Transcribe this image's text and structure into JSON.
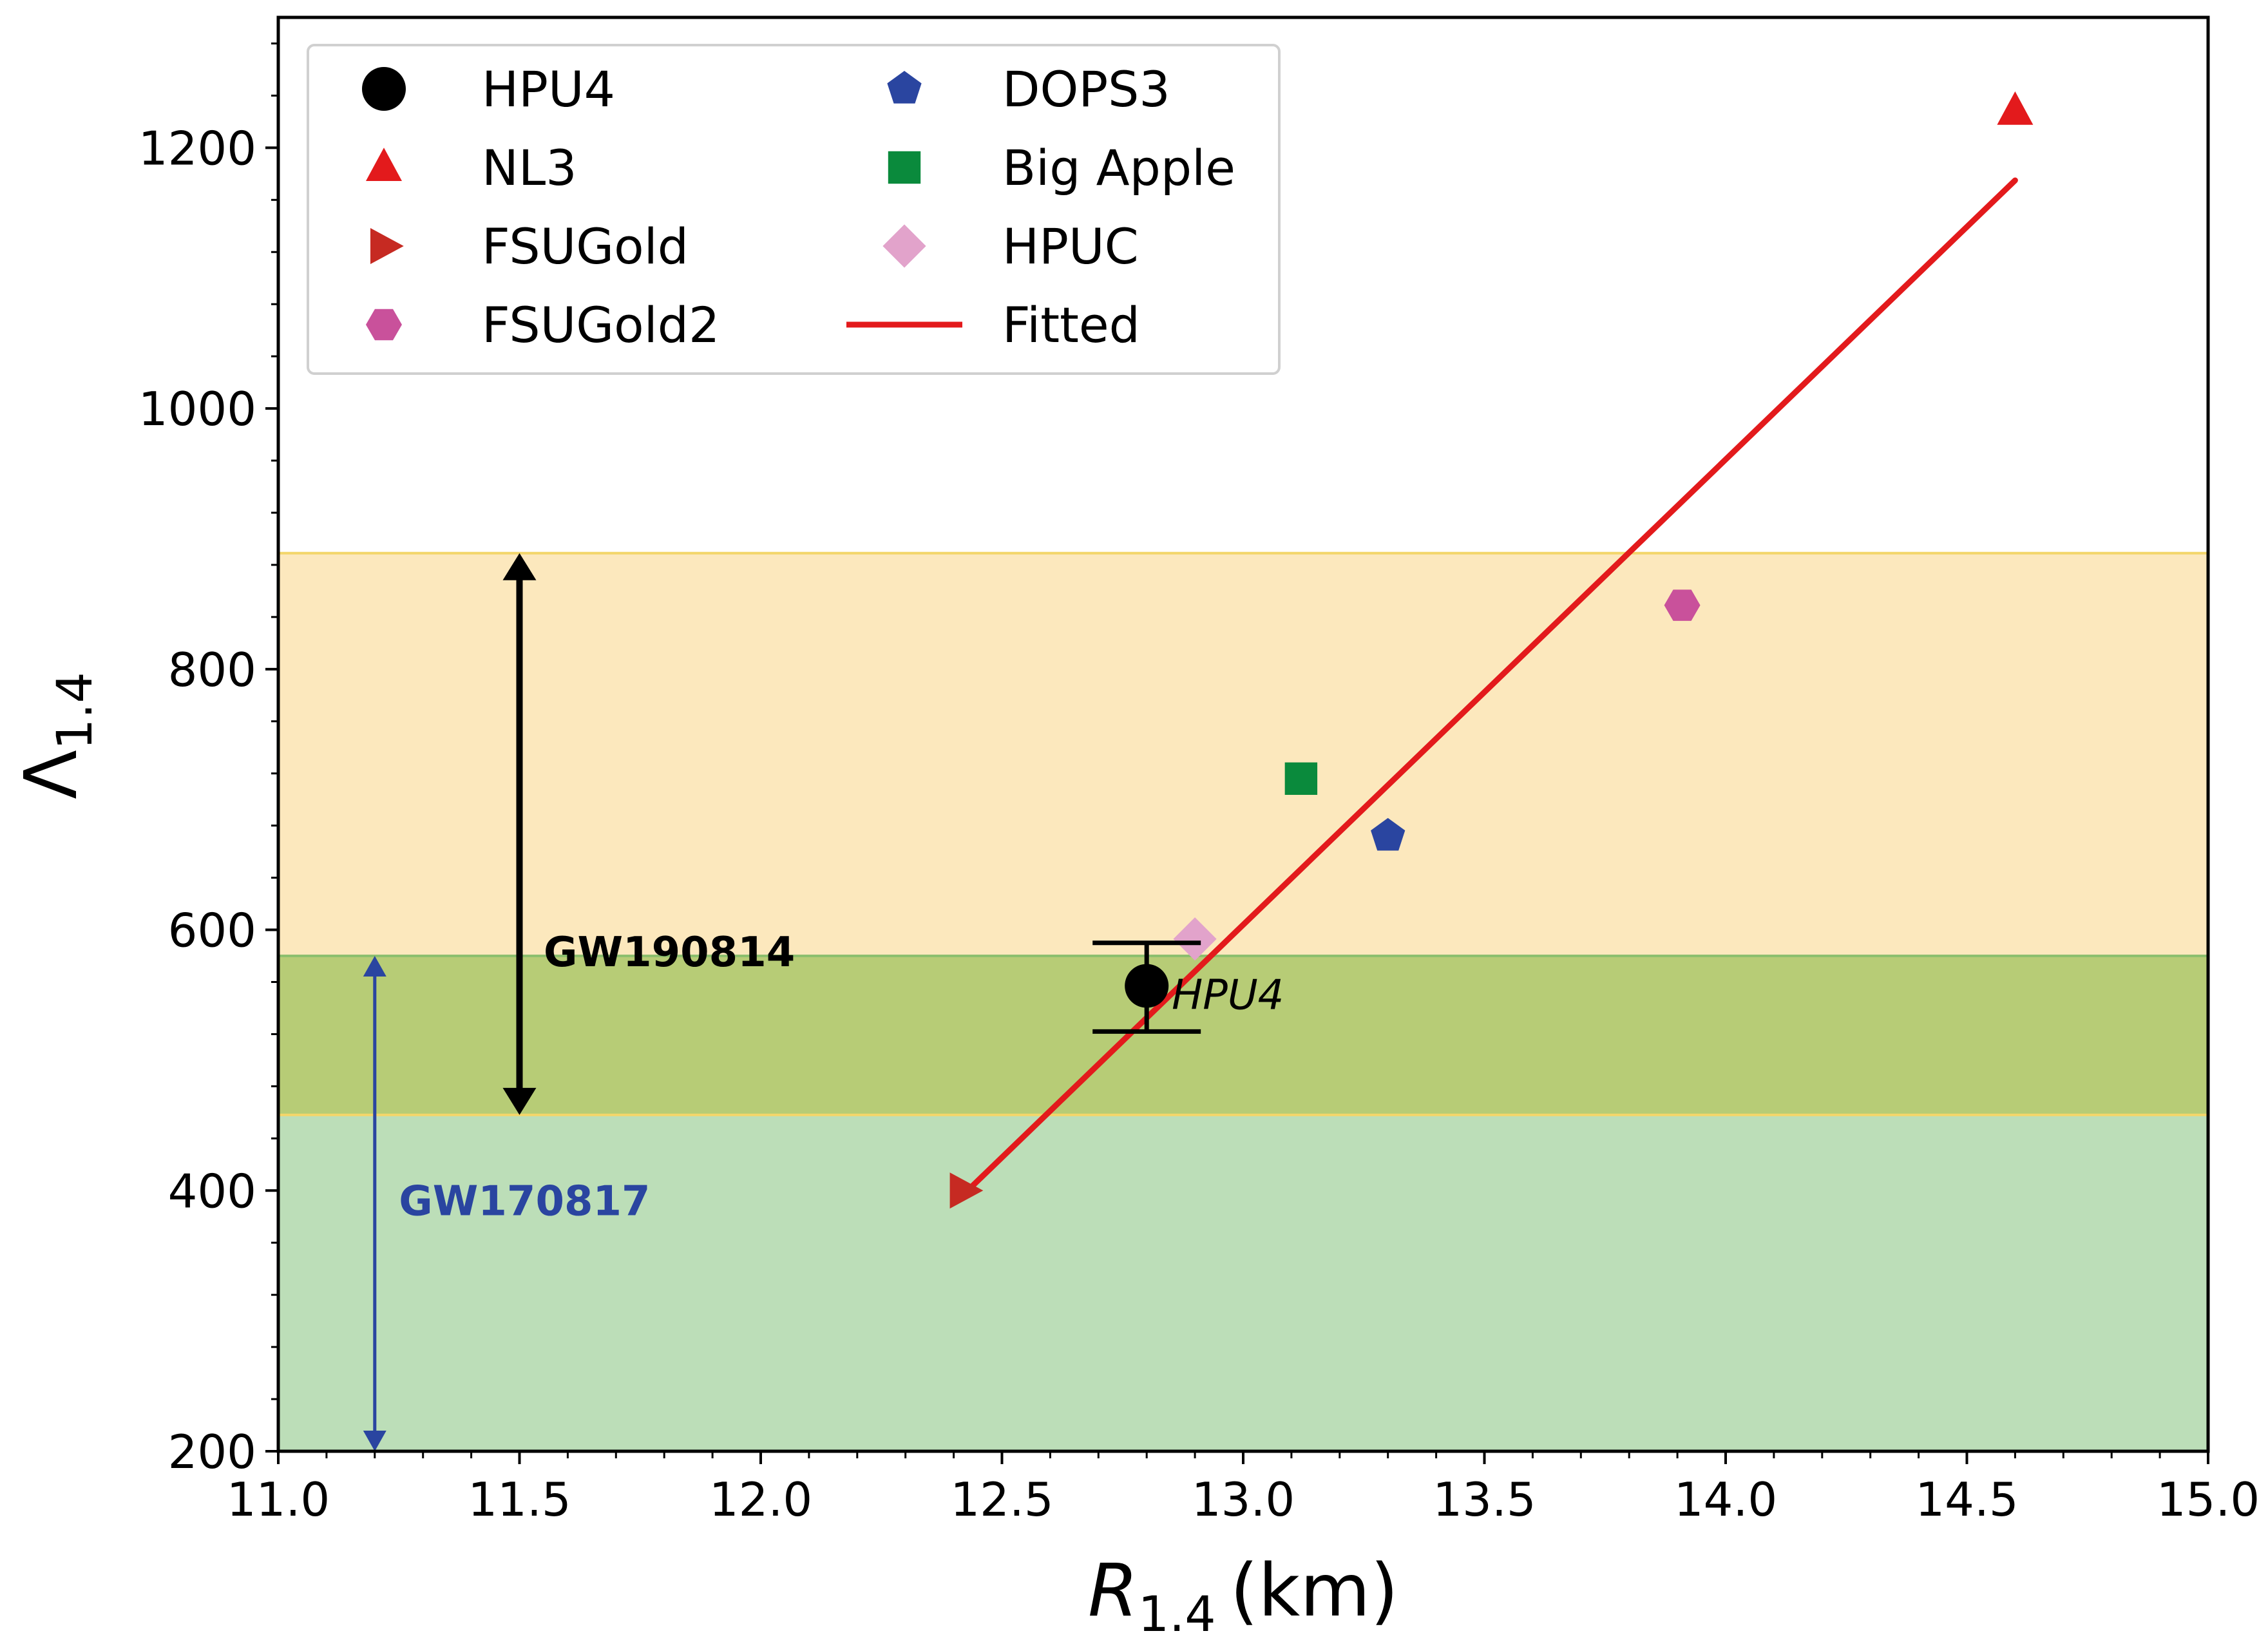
{
  "chart_data": {
    "type": "scatter",
    "xlabel": "R",
    "xlabel_sub": "1.4",
    "xlabel_unit": "(km)",
    "ylabel": "Λ",
    "ylabel_sub": "1.4",
    "xlim": [
      11.0,
      15.0
    ],
    "ylim": [
      200,
      1300
    ],
    "x_ticks": [
      11.0,
      11.5,
      12.0,
      12.5,
      13.0,
      13.5,
      14.0,
      14.5,
      15.0
    ],
    "x_tick_labels": [
      "11.0",
      "11.5",
      "12.0",
      "12.5",
      "13.0",
      "13.5",
      "14.0",
      "14.5",
      "15.0"
    ],
    "y_ticks": [
      200,
      400,
      600,
      800,
      1000,
      1200
    ],
    "y_tick_labels": [
      "200",
      "400",
      "600",
      "800",
      "1000",
      "1200"
    ],
    "grid": false,
    "legend_position": "top-left",
    "bands": [
      {
        "name": "GW190814",
        "y_range": [
          458,
          889
        ],
        "color": "#fce8bd",
        "edge": "#f3d66a"
      },
      {
        "name": "GW170817",
        "y_range": [
          200,
          580
        ],
        "color": "#bcdeb8",
        "edge": "#8cbf6e"
      }
    ],
    "overlap_color": "#b7cc76",
    "series": [
      {
        "name": "HPU4",
        "marker": "circle",
        "color": "#000000",
        "x": 12.8,
        "y": 557,
        "yerr": [
          522,
          590
        ]
      },
      {
        "name": "NL3",
        "marker": "triangle-up",
        "color": "#e31a1c",
        "x": 14.6,
        "y": 1228
      },
      {
        "name": "FSUGold",
        "marker": "triangle-right",
        "color": "#c62a22",
        "x": 12.42,
        "y": 400
      },
      {
        "name": "FSUGold2",
        "marker": "hexagon",
        "color": "#c9519b",
        "x": 13.91,
        "y": 849
      },
      {
        "name": "DOPS3",
        "marker": "pentagon",
        "color": "#2a45a0",
        "x": 13.3,
        "y": 672
      },
      {
        "name": "Big Apple",
        "marker": "square",
        "color": "#0a8a3c",
        "x": 13.12,
        "y": 716
      },
      {
        "name": "HPUC",
        "marker": "diamond",
        "color": "#e2a3cb",
        "x": 12.9,
        "y": 593
      }
    ],
    "fit": {
      "name": "Fitted",
      "color": "#e31a1c",
      "x": [
        12.44,
        14.6
      ],
      "y": [
        404,
        1175
      ]
    },
    "annotations": [
      {
        "text": "GW190814",
        "color": "#000000",
        "x": 11.55,
        "y": 583
      },
      {
        "text": "GW170817",
        "color": "#2a45a0",
        "x": 11.25,
        "y": 392
      },
      {
        "text": "HPU4",
        "color": "#000000",
        "x": 12.9,
        "y": 550
      }
    ],
    "arrows": [
      {
        "name": "GW190814",
        "x": 11.5,
        "y": [
          458,
          889
        ],
        "color": "#000000"
      },
      {
        "name": "GW170817",
        "x": 11.2,
        "y": [
          200,
          580
        ],
        "color": "#2a45a0"
      }
    ]
  }
}
